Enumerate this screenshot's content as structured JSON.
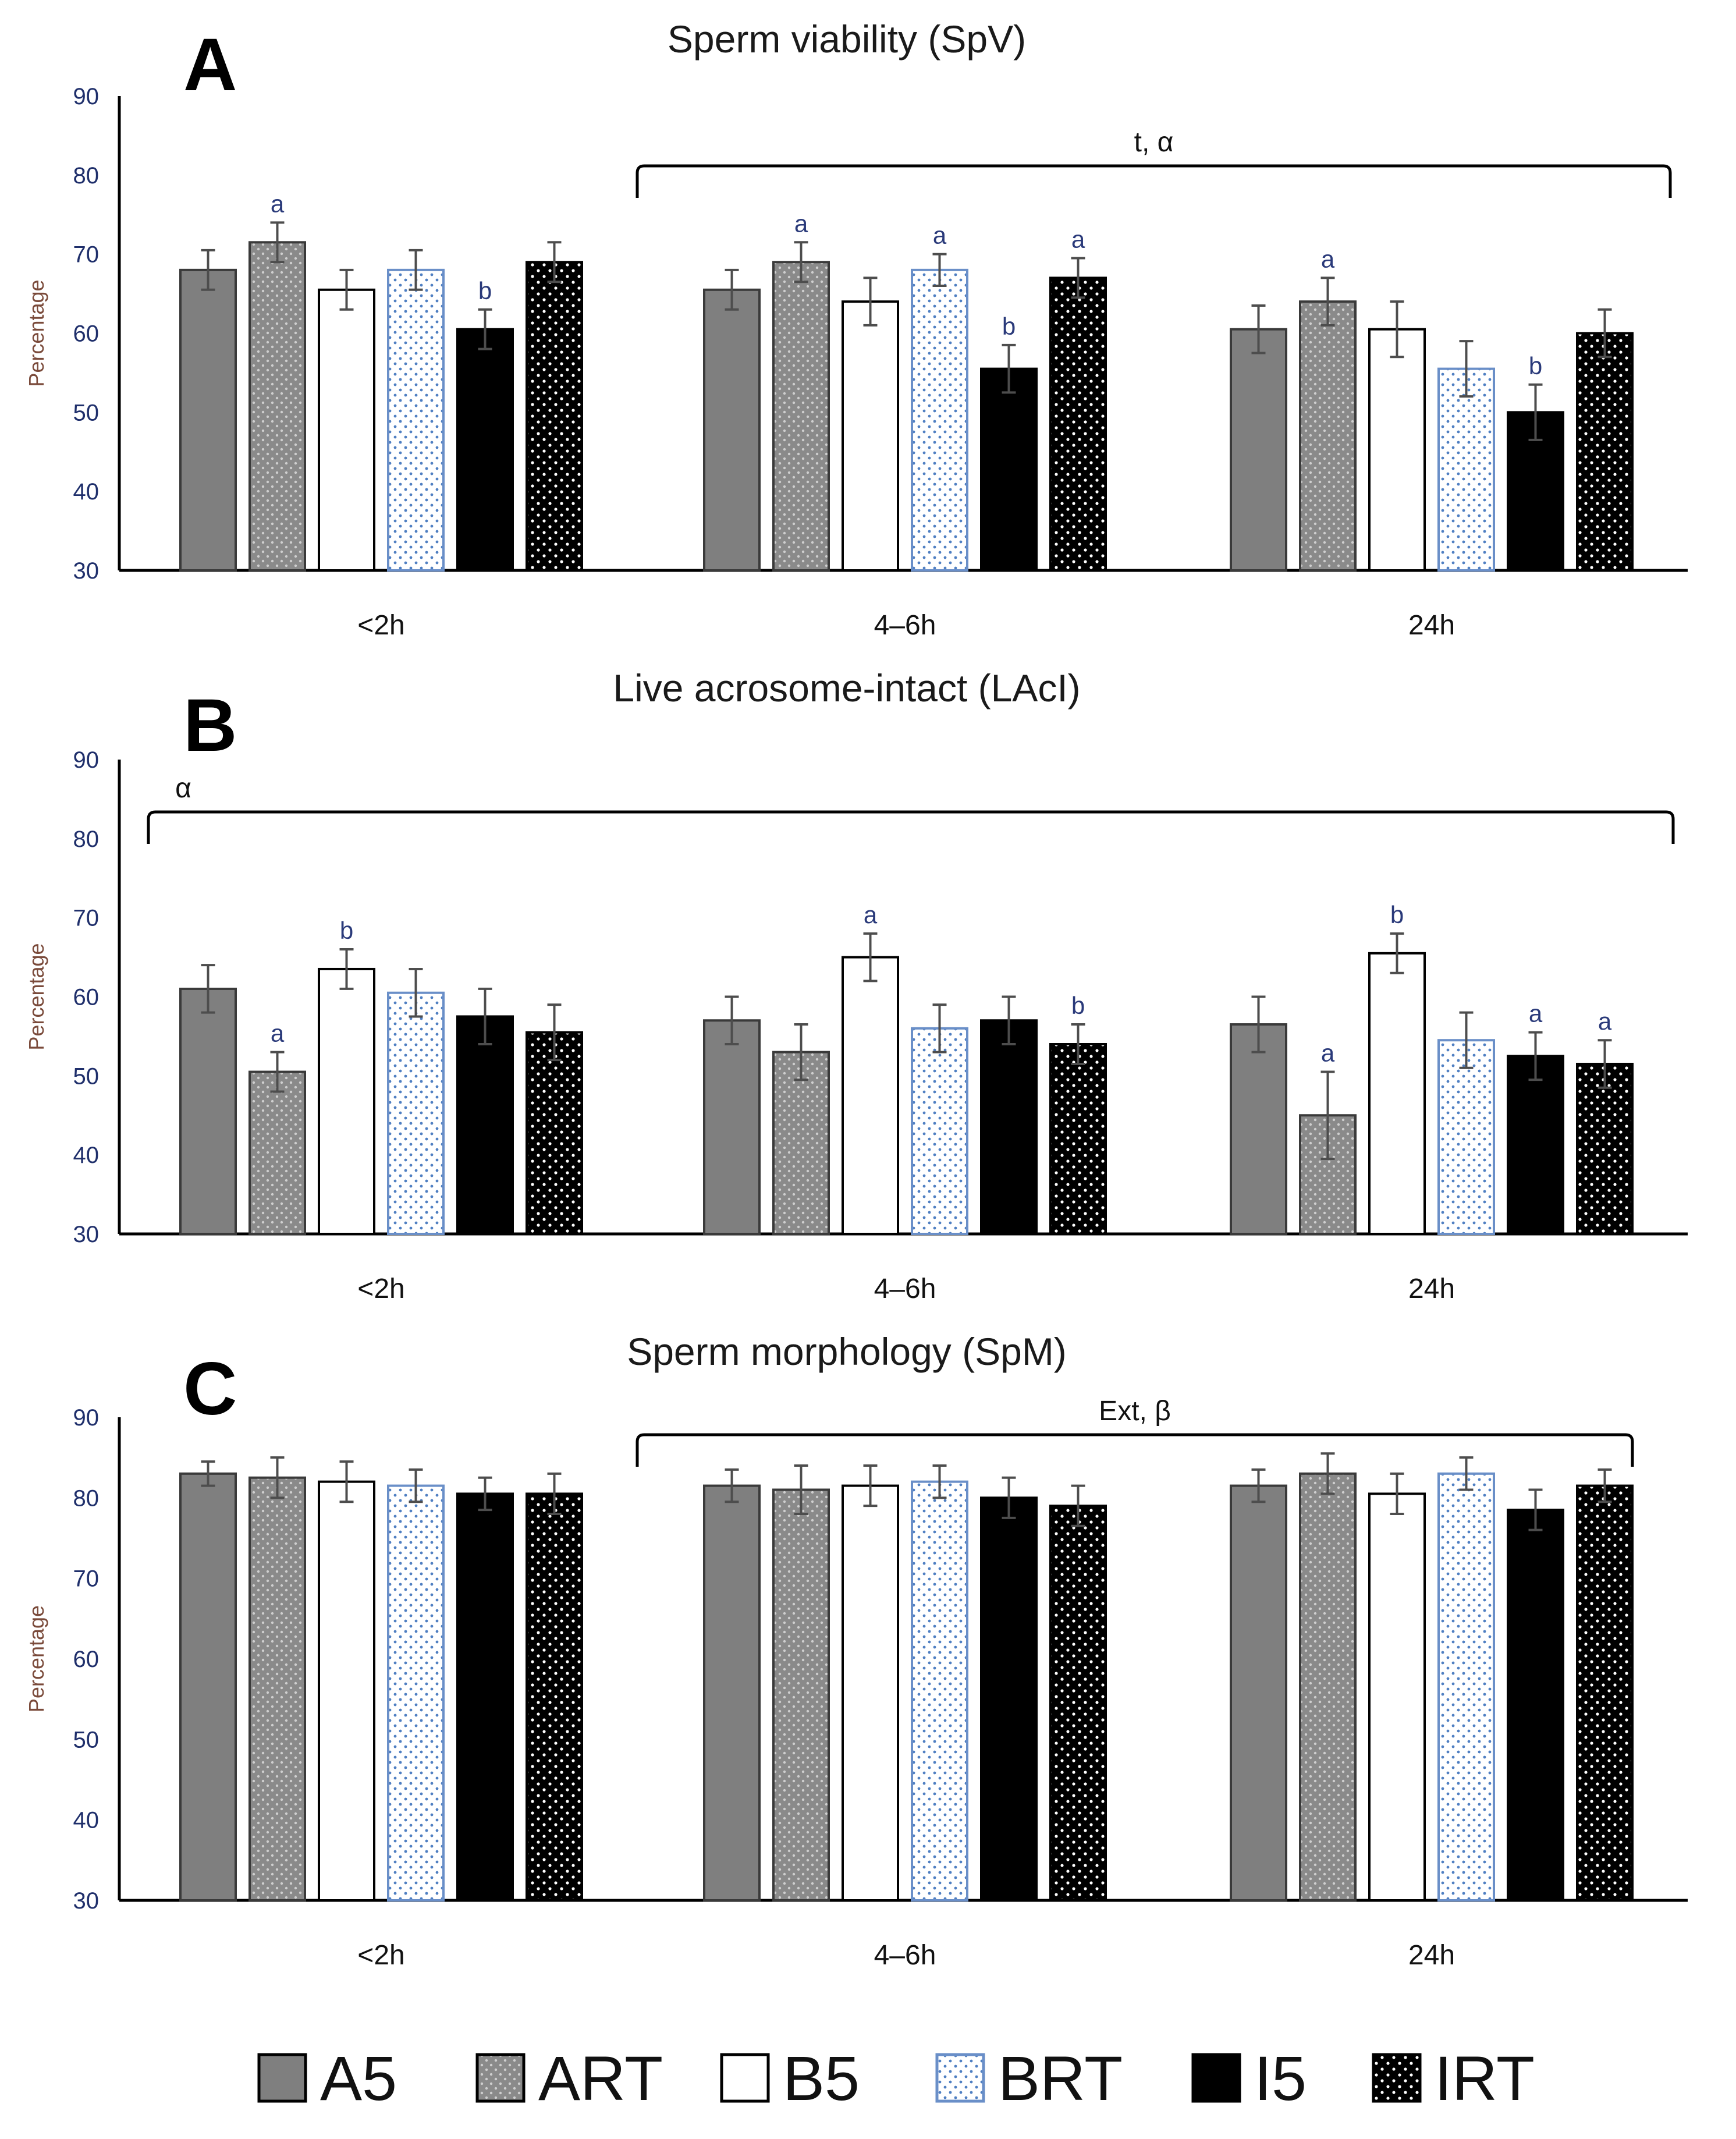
{
  "chart_data": [
    {
      "type": "bar",
      "panel": "A",
      "title": "Sperm viability (SpV)",
      "ylabel": "Percentage",
      "ylim": [
        30,
        90
      ],
      "yticks": [
        30,
        40,
        50,
        60,
        70,
        80,
        90
      ],
      "categories": [
        "<2h",
        "4–6h",
        "24h"
      ],
      "series": [
        {
          "name": "A5",
          "values": [
            68,
            65.5,
            60.5
          ],
          "errors": [
            2.5,
            2.5,
            3
          ],
          "labels": [
            "",
            "",
            ""
          ]
        },
        {
          "name": "ART",
          "values": [
            71.5,
            69,
            64
          ],
          "errors": [
            2.5,
            2.5,
            3
          ],
          "labels": [
            "a",
            "a",
            "a"
          ]
        },
        {
          "name": "B5",
          "values": [
            65.5,
            64,
            60.5
          ],
          "errors": [
            2.5,
            3,
            3.5
          ],
          "labels": [
            "",
            "",
            ""
          ]
        },
        {
          "name": "BRT",
          "values": [
            68,
            68,
            55.5
          ],
          "errors": [
            2.5,
            2,
            3.5
          ],
          "labels": [
            "",
            "a",
            ""
          ]
        },
        {
          "name": "I5",
          "values": [
            60.5,
            55.5,
            50
          ],
          "errors": [
            2.5,
            3,
            3.5
          ],
          "labels": [
            "b",
            "b",
            "b"
          ]
        },
        {
          "name": "IRT",
          "values": [
            69,
            67,
            60
          ],
          "errors": [
            2.5,
            2.5,
            3
          ],
          "labels": [
            "",
            "a",
            ""
          ]
        }
      ],
      "bracket": {
        "text": "t, α",
        "from_category": 1,
        "to_category": 2
      }
    },
    {
      "type": "bar",
      "panel": "B",
      "title": "Live acrosome-intact (LAcI)",
      "ylabel": "Percentage",
      "ylim": [
        30,
        90
      ],
      "yticks": [
        30,
        40,
        50,
        60,
        70,
        80,
        90
      ],
      "categories": [
        "<2h",
        "4–6h",
        "24h"
      ],
      "series": [
        {
          "name": "A5",
          "values": [
            61,
            57,
            56.5
          ],
          "errors": [
            3,
            3,
            3.5
          ],
          "labels": [
            "",
            "",
            ""
          ]
        },
        {
          "name": "ART",
          "values": [
            50.5,
            53,
            45
          ],
          "errors": [
            2.5,
            3.5,
            5.5
          ],
          "labels": [
            "a",
            "",
            "a"
          ]
        },
        {
          "name": "B5",
          "values": [
            63.5,
            65,
            65.5
          ],
          "errors": [
            2.5,
            3,
            2.5
          ],
          "labels": [
            "b",
            "a",
            "b"
          ]
        },
        {
          "name": "BRT",
          "values": [
            60.5,
            56,
            54.5
          ],
          "errors": [
            3,
            3,
            3.5
          ],
          "labels": [
            "",
            "",
            ""
          ]
        },
        {
          "name": "I5",
          "values": [
            57.5,
            57,
            52.5
          ],
          "errors": [
            3.5,
            3,
            3
          ],
          "labels": [
            "",
            "",
            "a"
          ]
        },
        {
          "name": "IRT",
          "values": [
            55.5,
            54,
            51.5
          ],
          "errors": [
            3.5,
            2.5,
            3
          ],
          "labels": [
            "",
            "b",
            "a"
          ]
        }
      ],
      "bracket": {
        "text": "α",
        "from_category": 0,
        "to_category": 2
      }
    },
    {
      "type": "bar",
      "panel": "C",
      "title": "Sperm morphology (SpM)",
      "ylabel": "Percentage",
      "ylim": [
        30,
        90
      ],
      "yticks": [
        30,
        40,
        50,
        60,
        70,
        80,
        90
      ],
      "categories": [
        "<2h",
        "4–6h",
        "24h"
      ],
      "series": [
        {
          "name": "A5",
          "values": [
            83,
            81.5,
            81.5
          ],
          "errors": [
            1.5,
            2,
            2
          ],
          "labels": [
            "",
            "",
            ""
          ]
        },
        {
          "name": "ART",
          "values": [
            82.5,
            81,
            83
          ],
          "errors": [
            2.5,
            3,
            2.5
          ],
          "labels": [
            "",
            "",
            ""
          ]
        },
        {
          "name": "B5",
          "values": [
            82,
            81.5,
            80.5
          ],
          "errors": [
            2.5,
            2.5,
            2.5
          ],
          "labels": [
            "",
            "",
            ""
          ]
        },
        {
          "name": "BRT",
          "values": [
            81.5,
            82,
            83
          ],
          "errors": [
            2,
            2,
            2
          ],
          "labels": [
            "",
            "",
            ""
          ]
        },
        {
          "name": "I5",
          "values": [
            80.5,
            80,
            78.5
          ],
          "errors": [
            2,
            2.5,
            2.5
          ],
          "labels": [
            "",
            "",
            ""
          ]
        },
        {
          "name": "IRT",
          "values": [
            80.5,
            79,
            81.5
          ],
          "errors": [
            2.5,
            2.5,
            2
          ],
          "labels": [
            "",
            "",
            ""
          ]
        }
      ],
      "bracket": {
        "text": "Ext, β",
        "from_category": 1,
        "to_category": 2
      }
    }
  ],
  "legend": {
    "items": [
      {
        "name": "A5",
        "pattern": "solid-gray"
      },
      {
        "name": "ART",
        "pattern": "dotted-gray"
      },
      {
        "name": "B5",
        "pattern": "white"
      },
      {
        "name": "BRT",
        "pattern": "dotted-blue"
      },
      {
        "name": "I5",
        "pattern": "solid-black"
      },
      {
        "name": "IRT",
        "pattern": "dotted-black"
      }
    ]
  },
  "colors": {
    "A5": "#808080",
    "ART": "#8c8c8c",
    "B5": "#ffffff",
    "BRT": "#ffffff",
    "I5": "#000000",
    "IRT": "#000000",
    "dot_light": "#d9d9d9",
    "dot_blue": "#4f7fc2",
    "error_bar": "#4d4d4d",
    "axis": "#000000"
  }
}
